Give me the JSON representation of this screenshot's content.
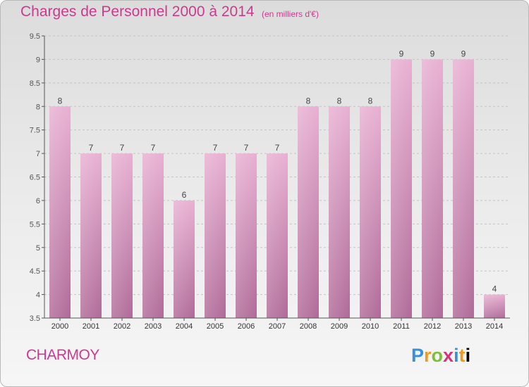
{
  "header": {
    "title": "Charges de Personnel 2000 à 2014",
    "subtitle": "(en milliers d'€)"
  },
  "footer": {
    "commune": "CHARMOY",
    "logo_text": "Proxiti"
  },
  "colors": {
    "title": "#cc3a8e",
    "bar_top": "#e8b0d2",
    "bar_bottom": "#b06a98",
    "axis": "#555555"
  },
  "chart_data": {
    "type": "bar",
    "title": "Charges de Personnel 2000 à 2014",
    "subtitle": "(en milliers d'€)",
    "categories": [
      "2000",
      "2001",
      "2002",
      "2003",
      "2004",
      "2005",
      "2006",
      "2007",
      "2008",
      "2009",
      "2010",
      "2011",
      "2012",
      "2013",
      "2014"
    ],
    "values": [
      8,
      7,
      7,
      7,
      6,
      7,
      7,
      7,
      8,
      8,
      8,
      9,
      9,
      9,
      4
    ],
    "ylim": [
      3.5,
      9.5
    ],
    "yticks": [
      3.5,
      4,
      4.5,
      5,
      5.5,
      6,
      6.5,
      7,
      7.5,
      8,
      8.5,
      9,
      9.5
    ],
    "ytick_labels": [
      "3.5",
      "4",
      "4.5",
      "5",
      "5.5",
      "6",
      "6.5",
      "7",
      "7.5",
      "8",
      "8.5",
      "9",
      "9.5"
    ],
    "grid": true,
    "legend": "none"
  }
}
